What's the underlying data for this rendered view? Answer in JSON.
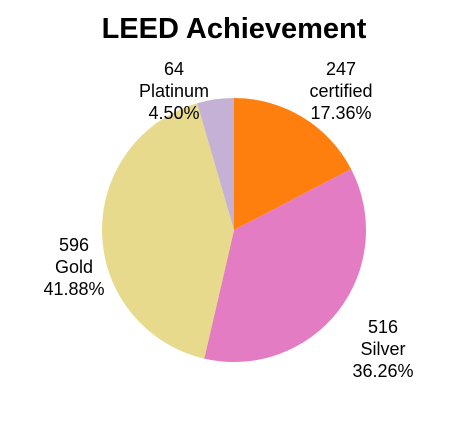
{
  "chart_data": {
    "type": "pie",
    "title": "LEED  Achievement",
    "slices": [
      {
        "category": "certified",
        "count": "247",
        "percent": "17.36%",
        "value": 247,
        "color": "#fe7f0e"
      },
      {
        "category": "Silver",
        "count": "516",
        "percent": "36.26%",
        "value": 516,
        "color": "#e37cc3"
      },
      {
        "category": "Gold",
        "count": "596",
        "percent": "41.88%",
        "value": 596,
        "color": "#e8da8c"
      },
      {
        "category": "Platinum",
        "count": "64",
        "percent": "4.50%",
        "value": 64,
        "color": "#c5b0d6"
      }
    ],
    "start_angle": "12 o'clock",
    "direction": "clockwise"
  }
}
